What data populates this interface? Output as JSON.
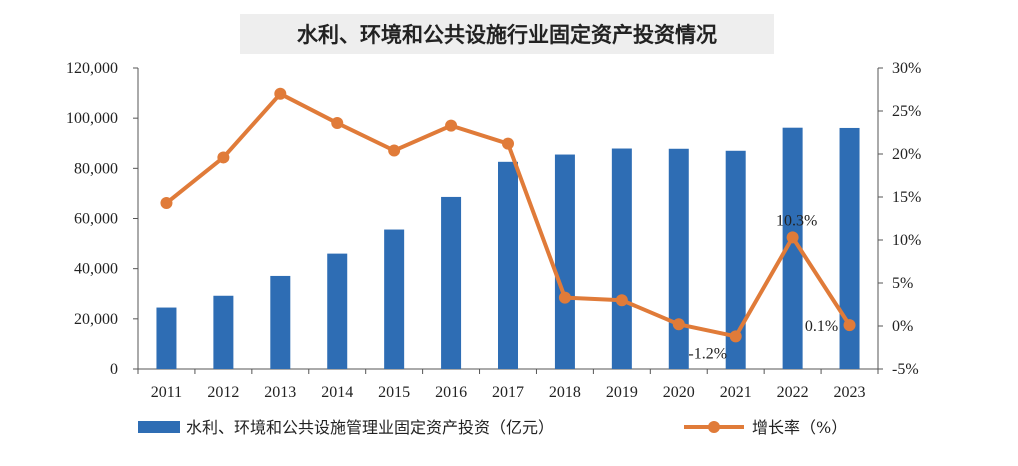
{
  "chart_data": {
    "type": "bar+line",
    "title": "水利、环境和公共设施行业固定资产投资情况",
    "categories": [
      "2011",
      "2012",
      "2013",
      "2014",
      "2015",
      "2016",
      "2017",
      "2018",
      "2019",
      "2020",
      "2021",
      "2022",
      "2023"
    ],
    "series": [
      {
        "name": "水利、环境和公共设施管理业固定资产投资（亿元）",
        "type": "bar",
        "axis": "left",
        "color": "#2E6DB4",
        "values": [
          24500,
          29200,
          37100,
          46000,
          55600,
          68600,
          82600,
          85500,
          87900,
          87800,
          87000,
          96200,
          96100
        ]
      },
      {
        "name": "增长率（%）",
        "type": "line",
        "axis": "right",
        "color": "#E07B39",
        "values": [
          14.3,
          19.6,
          27.0,
          23.6,
          20.4,
          23.3,
          21.2,
          3.3,
          3.0,
          0.2,
          -1.2,
          10.3,
          0.1
        ]
      }
    ],
    "left_axis": {
      "ylim": [
        0,
        120000
      ],
      "ticks": [
        0,
        20000,
        40000,
        60000,
        80000,
        100000,
        120000
      ],
      "tick_labels": [
        "0",
        "20,000",
        "40,000",
        "60,000",
        "80,000",
        "100,000",
        "120,000"
      ]
    },
    "right_axis": {
      "ylim": [
        -5,
        30
      ],
      "ticks": [
        -5,
        0,
        5,
        10,
        15,
        20,
        25,
        30
      ],
      "tick_labels": [
        "-5%",
        "0%",
        "5%",
        "10%",
        "15%",
        "20%",
        "25%",
        "30%"
      ]
    },
    "annotations": [
      {
        "category": "2021",
        "text": "-1.2%"
      },
      {
        "category": "2022",
        "text": "10.3%"
      },
      {
        "category": "2023",
        "text": "0.1%"
      }
    ],
    "legend": {
      "position": "bottom"
    },
    "grid": false
  }
}
